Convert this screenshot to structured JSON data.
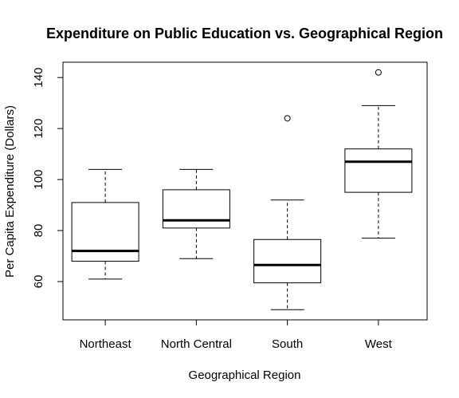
{
  "chart_data": {
    "type": "boxplot",
    "title": "Expenditure on Public Education vs. Geographical Region",
    "xlabel": "Geographical Region",
    "ylabel": "Per Capita Expenditure (Dollars)",
    "ylim": [
      45,
      146
    ],
    "y_ticks": [
      60,
      80,
      100,
      120,
      140
    ],
    "categories": [
      "Northeast",
      "North Central",
      "South",
      "West"
    ],
    "boxes": [
      {
        "category": "Northeast",
        "whisker_low": 61,
        "q1": 68,
        "median": 72,
        "q3": 91,
        "whisker_high": 104,
        "outliers": []
      },
      {
        "category": "North Central",
        "whisker_low": 69,
        "q1": 81,
        "median": 84,
        "q3": 96,
        "whisker_high": 104,
        "outliers": []
      },
      {
        "category": "South",
        "whisker_low": 49,
        "q1": 59.5,
        "median": 66.5,
        "q3": 76.5,
        "whisker_high": 92,
        "outliers": [
          124
        ]
      },
      {
        "category": "West",
        "whisker_low": 77,
        "q1": 95,
        "median": 107,
        "q3": 112,
        "whisker_high": 129,
        "outliers": [
          142
        ]
      }
    ],
    "grid": false,
    "legend": "none"
  }
}
